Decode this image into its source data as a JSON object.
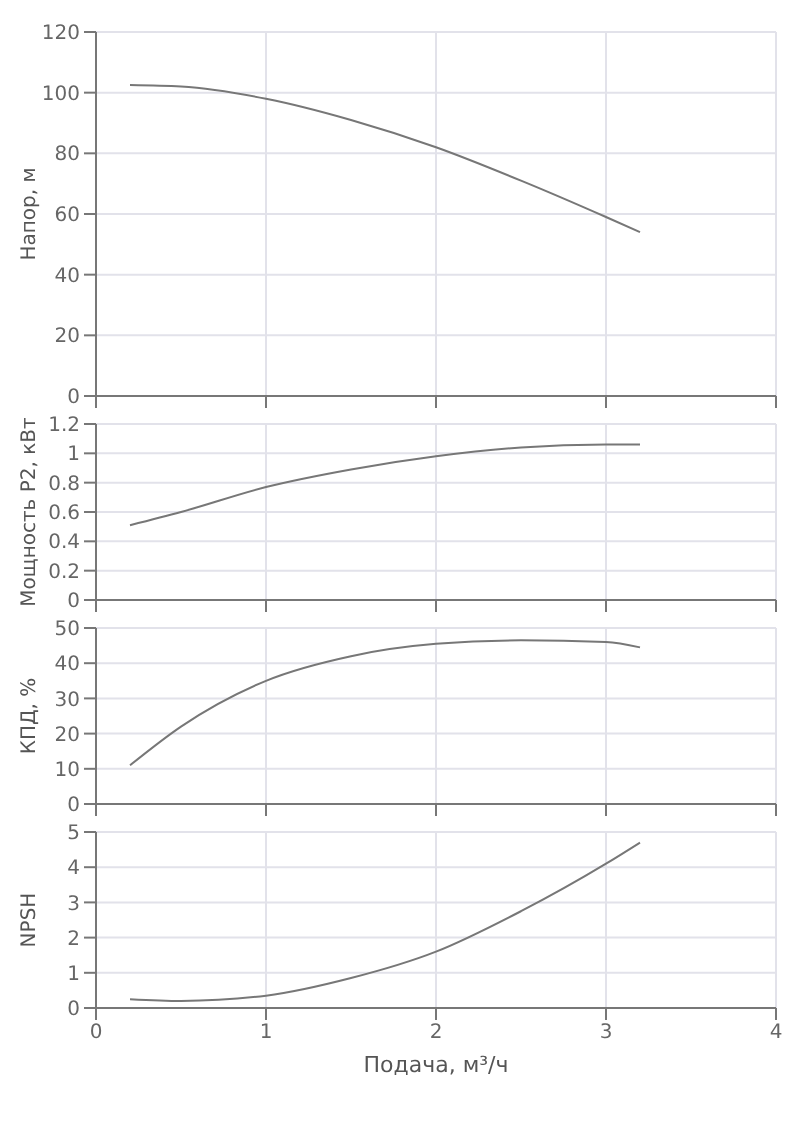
{
  "chart_data": [
    {
      "type": "line",
      "ylabel": "Напор, м",
      "x": [
        0.2,
        0.5,
        1,
        1.5,
        2,
        2.5,
        3,
        3.2
      ],
      "series": [
        {
          "color": "#777777",
          "values": [
            102.5,
            102,
            98,
            91,
            82,
            71,
            59,
            54
          ]
        }
      ],
      "xlim": [
        0,
        4
      ],
      "xticks": [
        0,
        1,
        2,
        3,
        4
      ],
      "ylim": [
        0,
        120
      ],
      "yticks": [
        0,
        20,
        40,
        60,
        80,
        100,
        120
      ],
      "grid": true,
      "tick_labels": "y"
    },
    {
      "type": "line",
      "ylabel": "Мощность P2, кВт",
      "x": [
        0.2,
        0.5,
        1,
        1.5,
        2,
        2.5,
        3,
        3.2
      ],
      "series": [
        {
          "color": "#777777",
          "values": [
            0.51,
            0.6,
            0.77,
            0.89,
            0.98,
            1.04,
            1.06,
            1.06
          ]
        }
      ],
      "xlim": [
        0,
        4
      ],
      "xticks": [
        0,
        1,
        2,
        3,
        4
      ],
      "ylim": [
        0,
        1.2
      ],
      "yticks": [
        0,
        0.2,
        0.4,
        0.6,
        0.8,
        1,
        1.2
      ],
      "grid": true,
      "tick_labels": "y"
    },
    {
      "type": "line",
      "ylabel": "КПД, %",
      "x": [
        0.2,
        0.5,
        1,
        1.5,
        2,
        2.5,
        3,
        3.2
      ],
      "series": [
        {
          "color": "#777777",
          "values": [
            11,
            22,
            35,
            42,
            45.5,
            46.5,
            46,
            44.5
          ]
        }
      ],
      "xlim": [
        0,
        4
      ],
      "xticks": [
        0,
        1,
        2,
        3,
        4
      ],
      "ylim": [
        0,
        50
      ],
      "yticks": [
        0,
        10,
        20,
        30,
        40,
        50
      ],
      "grid": true,
      "tick_labels": "y"
    },
    {
      "type": "line",
      "ylabel": "NPSH",
      "xlabel": "Подача, м³/ч",
      "x": [
        0.2,
        0.5,
        1,
        1.5,
        2,
        2.5,
        3,
        3.2
      ],
      "series": [
        {
          "color": "#777777",
          "values": [
            0.25,
            0.2,
            0.35,
            0.85,
            1.6,
            2.75,
            4.1,
            4.7
          ]
        }
      ],
      "xlim": [
        0,
        4
      ],
      "xticks": [
        0,
        1,
        2,
        3,
        4
      ],
      "ylim": [
        0,
        5
      ],
      "yticks": [
        0,
        1,
        2,
        3,
        4,
        5
      ],
      "grid": true
    }
  ]
}
